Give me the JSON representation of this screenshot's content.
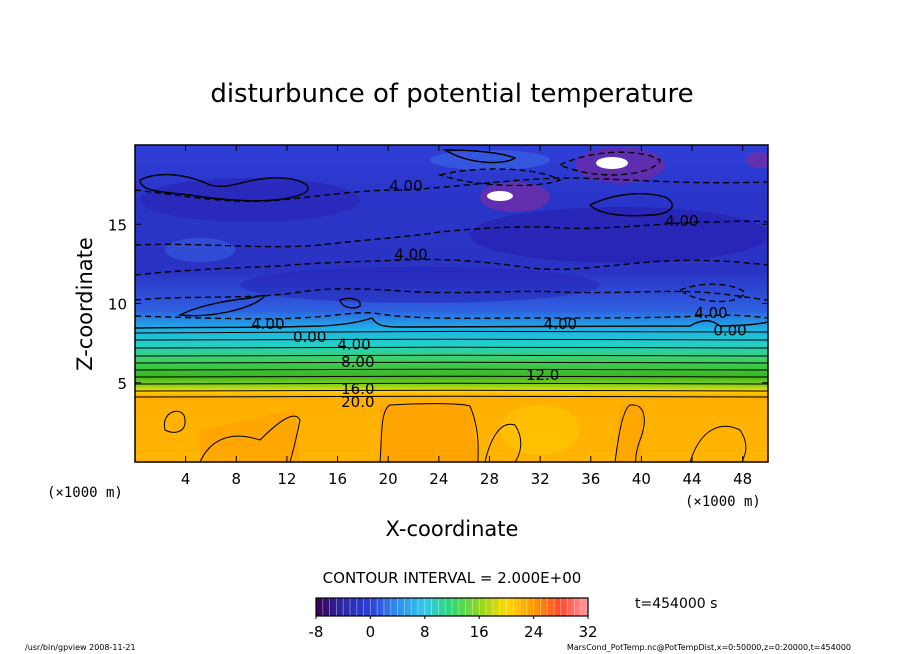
{
  "chart_data": {
    "type": "heatmap",
    "title": "disturbunce of potential temperature",
    "xlabel": "X-coordinate",
    "ylabel": "Z-coordinate",
    "x_unit_left": "(×1000 m)",
    "x_unit_right": "(×1000 m)",
    "xlim": [
      0,
      50
    ],
    "ylim": [
      0,
      20
    ],
    "x_ticks": [
      4,
      8,
      12,
      16,
      20,
      24,
      28,
      32,
      36,
      40,
      44,
      48
    ],
    "y_ticks": [
      5,
      10,
      15
    ],
    "contour_interval": "CONTOUR INTERVAL = 2.000E+00",
    "contour_labels": [
      {
        "text": "4.00",
        "x": 21.4,
        "z": 17.4
      },
      {
        "text": "4.00",
        "x": 43.2,
        "z": 15.2
      },
      {
        "text": "4.00",
        "x": 21.8,
        "z": 13.1
      },
      {
        "text": "4.00",
        "x": 10.5,
        "z": 8.7
      },
      {
        "text": "4.00",
        "x": 33.6,
        "z": 8.7
      },
      {
        "text": "4.00",
        "x": 45.5,
        "z": 9.4
      },
      {
        "text": "0.00",
        "x": 13.8,
        "z": 7.9
      },
      {
        "text": "0.00",
        "x": 47.0,
        "z": 8.3
      },
      {
        "text": "4.00",
        "x": 17.3,
        "z": 7.4
      },
      {
        "text": "8.00",
        "x": 17.6,
        "z": 6.3
      },
      {
        "text": "12.0",
        "x": 32.2,
        "z": 5.5
      },
      {
        "text": "16.0",
        "x": 17.6,
        "z": 4.6
      },
      {
        "text": "20.0",
        "x": 17.6,
        "z": 3.8
      }
    ],
    "colorbar": {
      "min": -8,
      "max": 32,
      "tick_labels": [
        "-8",
        "0",
        "8",
        "16",
        "24",
        "32"
      ],
      "tick_values": [
        -8,
        0,
        8,
        16,
        24,
        32
      ]
    },
    "time_label": "t=454000 s",
    "footer_left": "/usr/bin/gpview  2008-11-21",
    "footer_right": "MarsCond_PotTemp.nc@PotTempDist,x=0:50000,z=0:20000,t=454000"
  }
}
